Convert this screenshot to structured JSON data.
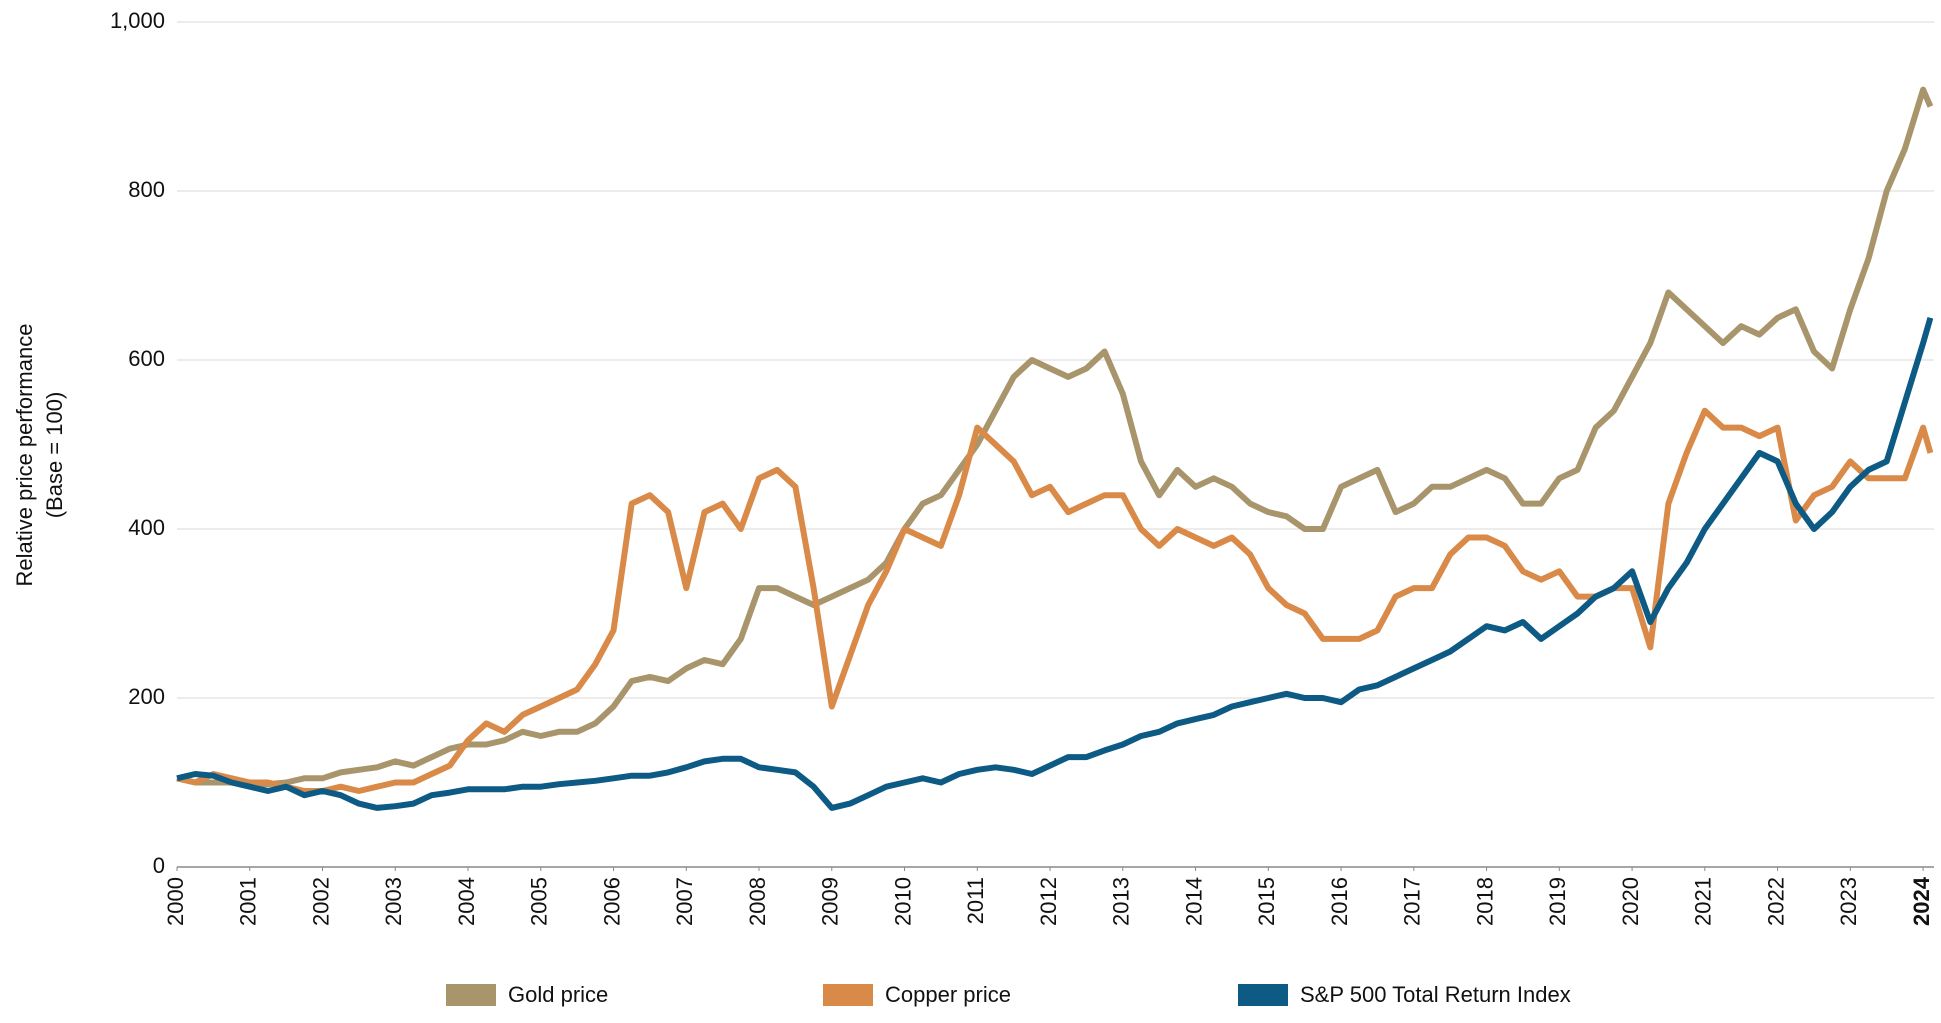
{
  "chart_data": {
    "type": "line",
    "ylabel": [
      "Relative price performance",
      "(Base = 100)"
    ],
    "x": [
      2000,
      2000.25,
      2000.5,
      2000.75,
      2001,
      2001.25,
      2001.5,
      2001.75,
      2002,
      2002.25,
      2002.5,
      2002.75,
      2003,
      2003.25,
      2003.5,
      2003.75,
      2004,
      2004.25,
      2004.5,
      2004.75,
      2005,
      2005.25,
      2005.5,
      2005.75,
      2006,
      2006.25,
      2006.5,
      2006.75,
      2007,
      2007.25,
      2007.5,
      2007.75,
      2008,
      2008.25,
      2008.5,
      2008.75,
      2009,
      2009.25,
      2009.5,
      2009.75,
      2010,
      2010.25,
      2010.5,
      2010.75,
      2011,
      2011.25,
      2011.5,
      2011.75,
      2012,
      2012.25,
      2012.5,
      2012.75,
      2013,
      2013.25,
      2013.5,
      2013.75,
      2014,
      2014.25,
      2014.5,
      2014.75,
      2015,
      2015.25,
      2015.5,
      2015.75,
      2016,
      2016.25,
      2016.5,
      2016.75,
      2017,
      2017.25,
      2017.5,
      2017.75,
      2018,
      2018.25,
      2018.5,
      2018.75,
      2019,
      2019.25,
      2019.5,
      2019.75,
      2020,
      2020.25,
      2020.5,
      2020.75,
      2021,
      2021.25,
      2021.5,
      2021.75,
      2022,
      2022.25,
      2022.5,
      2022.75,
      2023,
      2023.25,
      2023.5,
      2023.75,
      2024,
      2024.1
    ],
    "series": [
      {
        "name": "Gold price",
        "color": "#a8956b",
        "values": [
          105,
          100,
          100,
          100,
          98,
          98,
          100,
          105,
          105,
          112,
          115,
          118,
          125,
          120,
          130,
          140,
          145,
          145,
          150,
          160,
          155,
          160,
          160,
          170,
          190,
          220,
          225,
          220,
          235,
          245,
          240,
          270,
          330,
          330,
          320,
          310,
          320,
          330,
          340,
          360,
          400,
          430,
          440,
          470,
          500,
          540,
          580,
          600,
          590,
          580,
          590,
          610,
          560,
          480,
          440,
          470,
          450,
          460,
          450,
          430,
          420,
          415,
          400,
          400,
          450,
          460,
          470,
          420,
          430,
          450,
          450,
          460,
          470,
          460,
          430,
          430,
          460,
          470,
          520,
          540,
          580,
          620,
          680,
          660,
          640,
          620,
          640,
          630,
          650,
          660,
          610,
          590,
          660,
          720,
          800,
          850,
          920,
          900
        ]
      },
      {
        "name": "Copper price",
        "color": "#d98a48",
        "values": [
          105,
          100,
          110,
          105,
          100,
          100,
          95,
          90,
          90,
          95,
          90,
          95,
          100,
          100,
          110,
          120,
          150,
          170,
          160,
          180,
          190,
          200,
          210,
          240,
          280,
          430,
          440,
          420,
          330,
          420,
          430,
          400,
          460,
          470,
          450,
          330,
          190,
          250,
          310,
          350,
          400,
          390,
          380,
          440,
          520,
          500,
          480,
          440,
          450,
          420,
          430,
          440,
          440,
          400,
          380,
          400,
          390,
          380,
          390,
          370,
          330,
          310,
          300,
          270,
          270,
          270,
          280,
          320,
          330,
          330,
          370,
          390,
          390,
          380,
          350,
          340,
          350,
          320,
          320,
          330,
          330,
          260,
          430,
          490,
          540,
          520,
          520,
          510,
          520,
          410,
          440,
          450,
          480,
          460,
          460,
          460,
          520,
          490
        ]
      },
      {
        "name": "S&P 500 Total Return Index",
        "color": "#0d5a85",
        "values": [
          105,
          110,
          108,
          100,
          95,
          90,
          95,
          85,
          90,
          85,
          75,
          70,
          72,
          75,
          85,
          88,
          92,
          92,
          92,
          95,
          95,
          98,
          100,
          102,
          105,
          108,
          108,
          112,
          118,
          125,
          128,
          128,
          118,
          115,
          112,
          95,
          70,
          75,
          85,
          95,
          100,
          105,
          100,
          110,
          115,
          118,
          115,
          110,
          120,
          130,
          130,
          138,
          145,
          155,
          160,
          170,
          175,
          180,
          190,
          195,
          200,
          205,
          200,
          200,
          195,
          210,
          215,
          225,
          235,
          245,
          255,
          270,
          285,
          280,
          290,
          270,
          285,
          300,
          320,
          330,
          350,
          290,
          330,
          360,
          400,
          430,
          460,
          490,
          480,
          430,
          400,
          420,
          450,
          470,
          480,
          550,
          620,
          650
        ]
      }
    ],
    "xlim": [
      2000,
      2024.15
    ],
    "xticks": [
      2000,
      2001,
      2002,
      2003,
      2004,
      2005,
      2006,
      2007,
      2008,
      2009,
      2010,
      2011,
      2012,
      2013,
      2014,
      2015,
      2016,
      2017,
      2018,
      2019,
      2020,
      2021,
      2022,
      2023,
      2024
    ],
    "ylim": [
      0,
      1000
    ],
    "yticks": [
      0,
      200,
      400,
      600,
      800,
      {
        "value": 1000,
        "label": "1,000"
      }
    ],
    "grid": true
  }
}
